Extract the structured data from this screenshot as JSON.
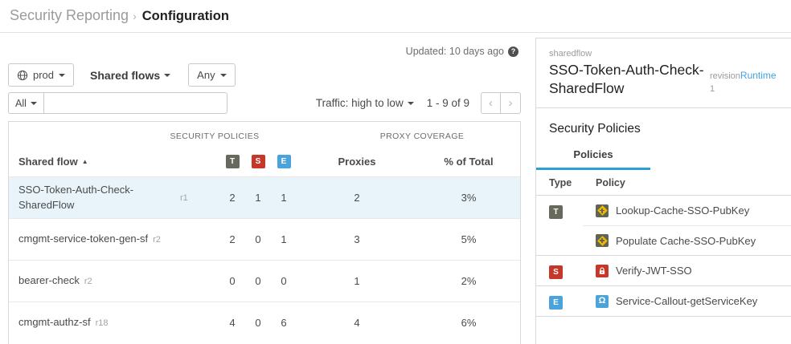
{
  "breadcrumb": {
    "parent": "Security Reporting",
    "separator": "›",
    "current": "Configuration"
  },
  "toolbar": {
    "env_label": "prod",
    "scope_label": "Shared flows",
    "any_label": "Any",
    "all_label": "All",
    "search_value": "",
    "updated_text": "Updated: 10 days ago",
    "help_glyph": "?",
    "traffic_sort_label": "Traffic: high to low",
    "pagination_text": "1 - 9 of 9",
    "prev_glyph": "‹",
    "next_glyph": "›"
  },
  "table": {
    "group_headers": {
      "security_policies": "SECURITY POLICIES",
      "proxy_coverage": "PROXY COVERAGE"
    },
    "columns": {
      "shared_flow": "Shared flow",
      "proxies": "Proxies",
      "pct_total": "% of Total"
    },
    "sort_arrow": "▲",
    "badges": [
      {
        "label": "T",
        "color": "#66695c"
      },
      {
        "label": "S",
        "color": "#c53829"
      },
      {
        "label": "E",
        "color": "#4ba3dc"
      }
    ],
    "rows": [
      {
        "name": "SSO-Token-Auth-Check-SharedFlow",
        "revision": "r1",
        "t": "2",
        "s": "1",
        "e": "1",
        "proxies": "2",
        "pct": "3%",
        "selected": true
      },
      {
        "name": "cmgmt-service-token-gen-sf",
        "revision": "r2",
        "t": "2",
        "s": "0",
        "e": "1",
        "proxies": "3",
        "pct": "5%",
        "selected": false
      },
      {
        "name": "bearer-check",
        "revision": "r2",
        "t": "0",
        "s": "0",
        "e": "0",
        "proxies": "1",
        "pct": "2%",
        "selected": false
      },
      {
        "name": "cmgmt-authz-sf",
        "revision": "r18",
        "t": "4",
        "s": "0",
        "e": "6",
        "proxies": "4",
        "pct": "6%",
        "selected": false
      }
    ]
  },
  "detail_panel": {
    "type_label": "sharedflow",
    "title": "SSO-Token-Auth-Check-SharedFlow",
    "revision_label": "revision",
    "revision_value": "1",
    "runtime_link": "Runtime",
    "section_title": "Security Policies",
    "tab_label": "Policies",
    "columns": {
      "type": "Type",
      "policy": "Policy"
    },
    "policy_groups": [
      {
        "type": "T",
        "policies": [
          {
            "name": "Lookup-Cache-SSO-PubKey",
            "icon": "cache"
          },
          {
            "name": "Populate Cache-SSO-PubKey",
            "icon": "cache"
          }
        ]
      },
      {
        "type": "S",
        "policies": [
          {
            "name": "Verify-JWT-SSO",
            "icon": "lock"
          }
        ]
      },
      {
        "type": "E",
        "policies": [
          {
            "name": "Service-Callout-getServiceKey",
            "icon": "callout"
          }
        ]
      }
    ]
  },
  "colors": {
    "badge_traffic": "#66695c",
    "badge_security": "#c53829",
    "badge_extension": "#4ba3dc",
    "cache_icon_yellow": "#f0b800",
    "accent_blue": "#2ba0d6",
    "selected_row_bg": "#e8f4fa"
  }
}
